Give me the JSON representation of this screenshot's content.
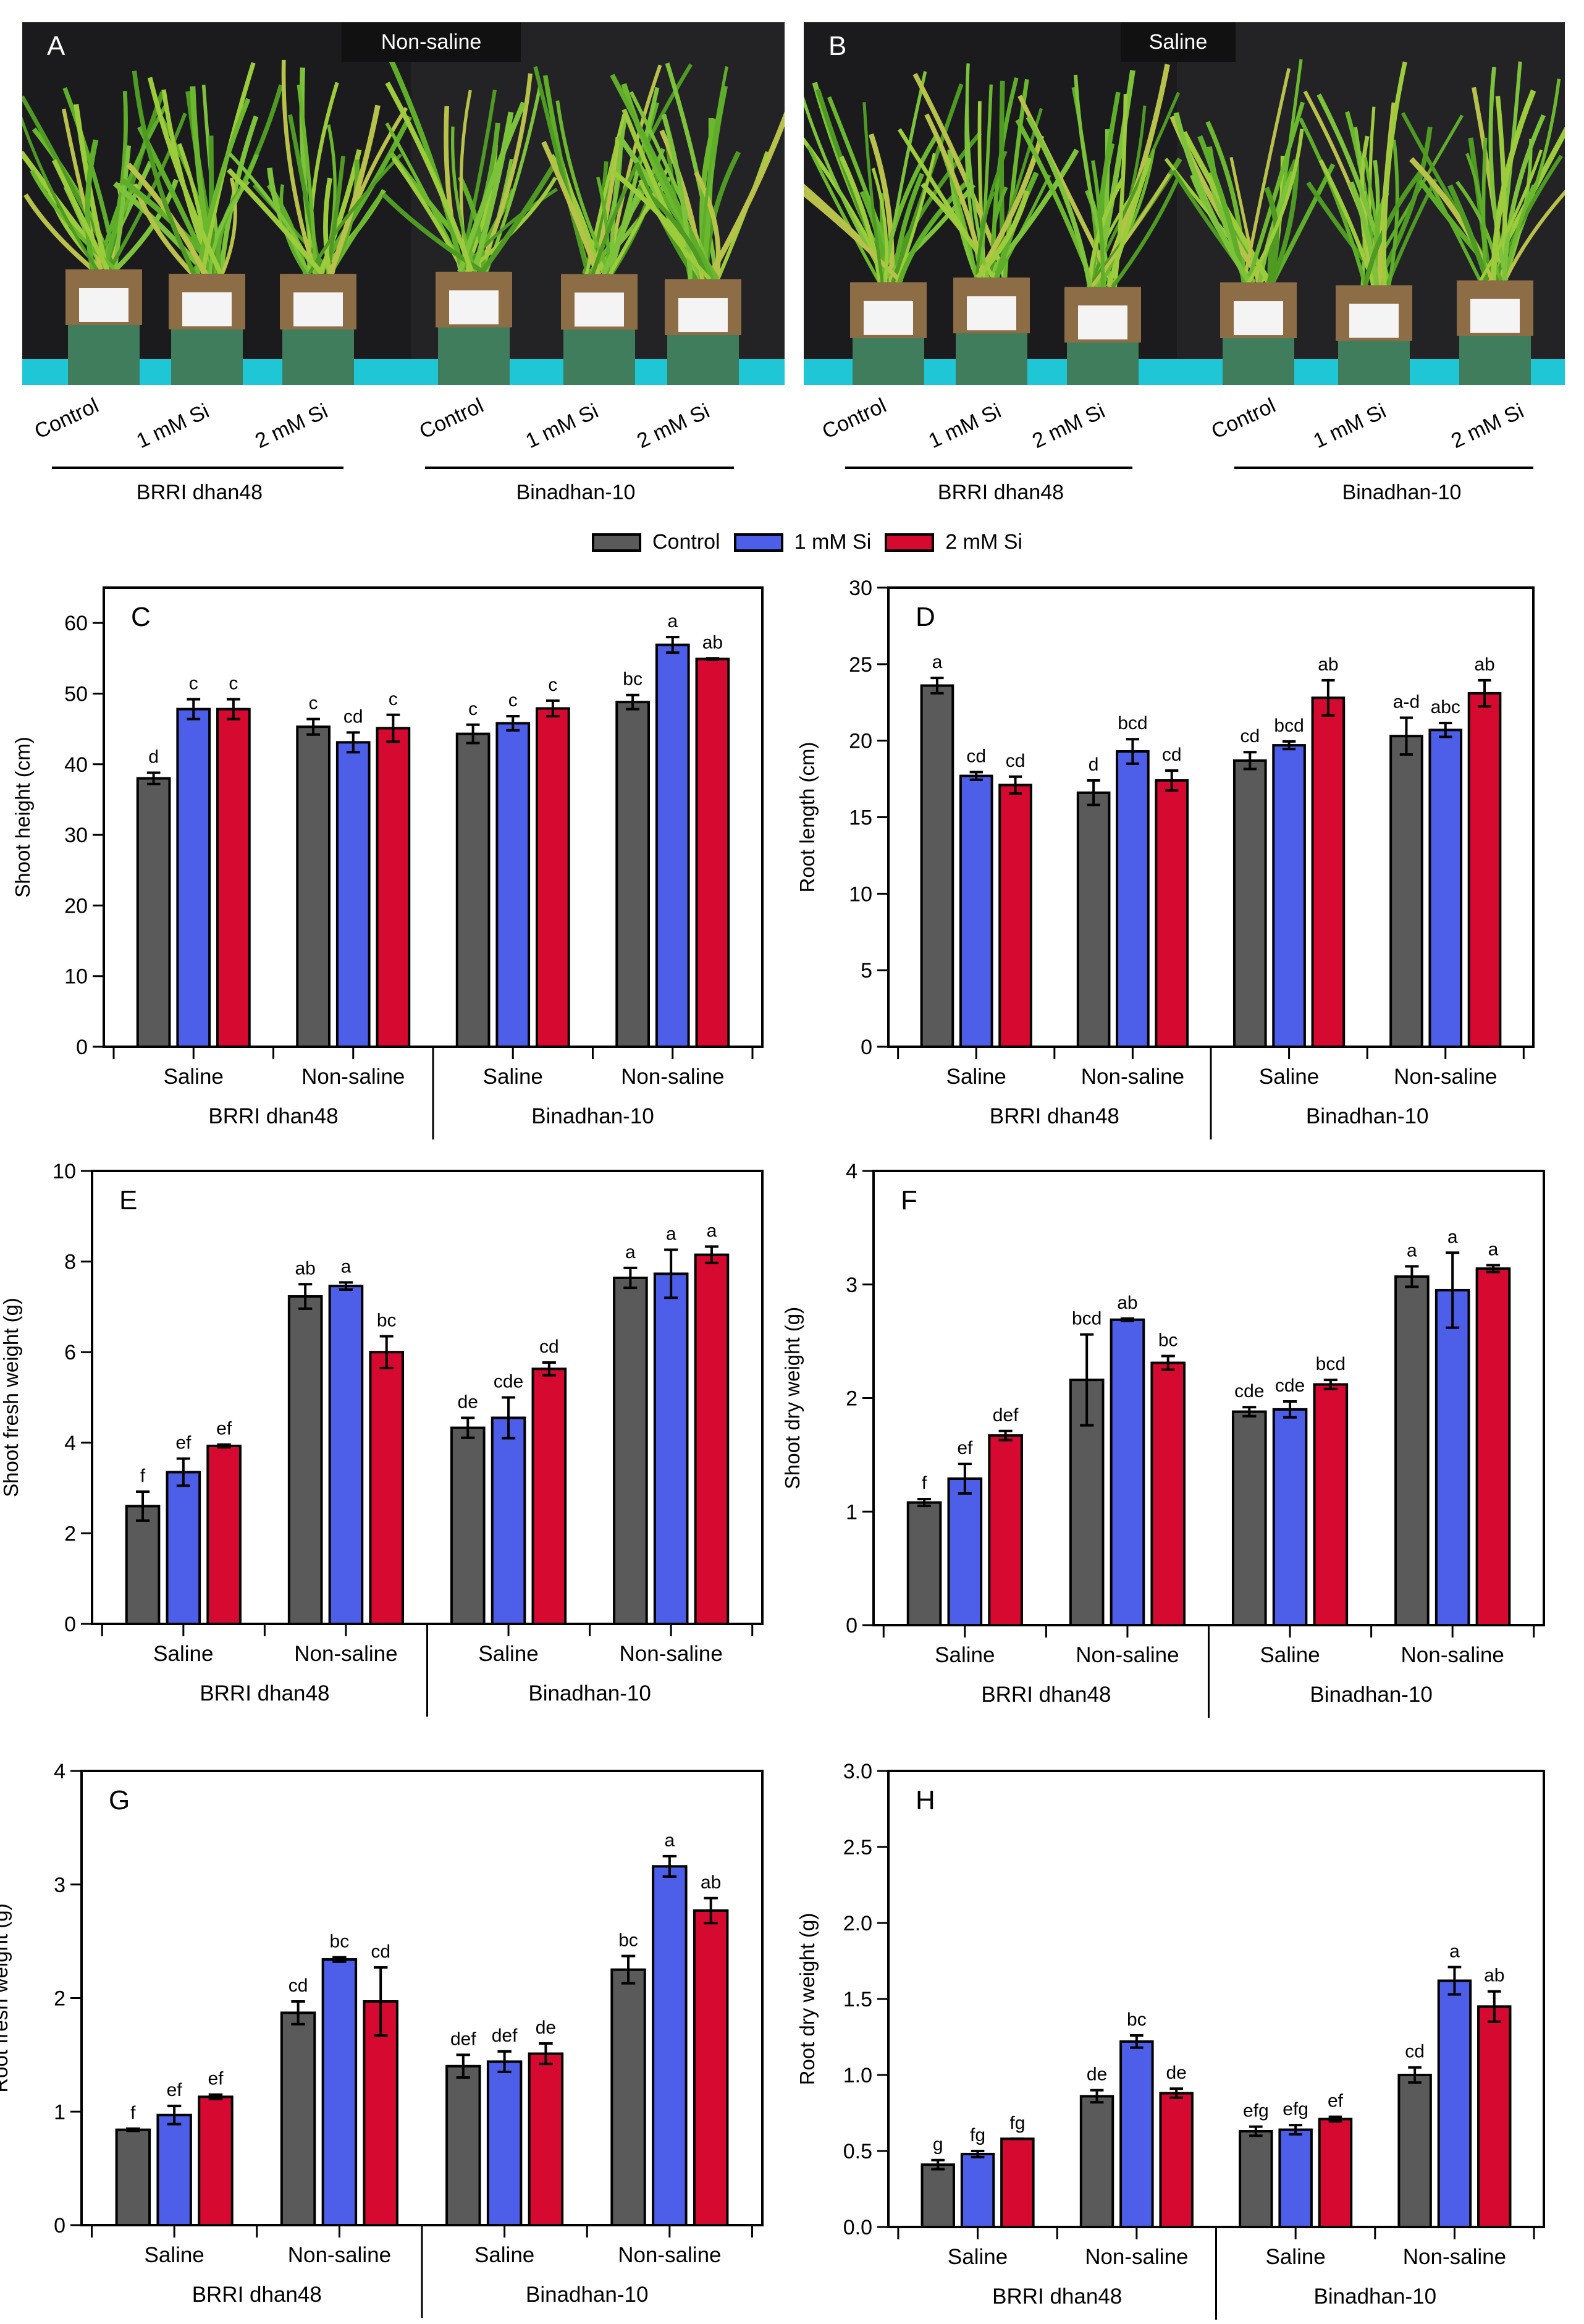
{
  "photos": [
    {
      "panel": "A",
      "condition": "Non-saline",
      "cultivars": [
        {
          "name": "BRRI dhan48",
          "treatments": [
            "Control",
            "1 mM Si",
            "2 mM Si"
          ]
        },
        {
          "name": "Binadhan-10",
          "treatments": [
            "Control",
            "1 mM Si",
            "2 mM Si"
          ]
        }
      ]
    },
    {
      "panel": "B",
      "condition": "Saline",
      "cultivars": [
        {
          "name": "BRRI dhan48",
          "treatments": [
            "Control",
            "1 mM Si",
            "2 mM Si"
          ]
        },
        {
          "name": "Binadhan-10",
          "treatments": [
            "Control",
            "1 mM Si",
            "2 mM Si"
          ]
        }
      ]
    }
  ],
  "legend": [
    {
      "label": "Control",
      "color": "#5a5a5a"
    },
    {
      "label": "1 mM Si",
      "color": "#4d5fe8"
    },
    {
      "label": "2 mM Si",
      "color": "#d60a30"
    }
  ],
  "chart_data": [
    {
      "panel": "C",
      "type": "bar",
      "ylabel": "Shoot height (cm)",
      "ylim": [
        0,
        65
      ],
      "yticks": [
        0,
        10,
        20,
        30,
        40,
        50,
        60
      ],
      "ytick_labels": [
        "0",
        "10",
        "20",
        "30",
        "40",
        "50",
        "60"
      ],
      "categories": [
        "Saline",
        "Non-saline",
        "Saline",
        "Non-saline"
      ],
      "cultivars": [
        "BRRI dhan48",
        "Binadhan-10"
      ],
      "series": [
        {
          "name": "Control",
          "values": [
            38.0,
            45.3,
            44.3,
            48.8
          ],
          "errors": [
            0.8,
            1.1,
            1.3,
            1.0
          ],
          "letters": [
            "d",
            "c",
            "c",
            "bc"
          ]
        },
        {
          "name": "1 mM Si",
          "values": [
            47.8,
            43.1,
            45.8,
            56.9
          ],
          "errors": [
            1.4,
            1.4,
            1.0,
            1.1
          ],
          "letters": [
            "c",
            "cd",
            "c",
            "a"
          ]
        },
        {
          "name": "2 mM Si",
          "values": [
            47.8,
            45.1,
            47.9,
            54.9
          ],
          "errors": [
            1.4,
            1.9,
            1.1,
            0.1
          ],
          "letters": [
            "c",
            "c",
            "c",
            "ab"
          ]
        }
      ]
    },
    {
      "panel": "D",
      "type": "bar",
      "ylabel": "Root length (cm)",
      "ylim": [
        0,
        30
      ],
      "yticks": [
        0,
        5,
        10,
        15,
        20,
        25,
        30
      ],
      "ytick_labels": [
        "0",
        "5",
        "10",
        "15",
        "20",
        "25",
        "30"
      ],
      "categories": [
        "Saline",
        "Non-saline",
        "Saline",
        "Non-saline"
      ],
      "cultivars": [
        "BRRI dhan48",
        "Binadhan-10"
      ],
      "series": [
        {
          "name": "Control",
          "values": [
            23.6,
            16.6,
            18.7,
            20.3
          ],
          "errors": [
            0.5,
            0.8,
            0.55,
            1.2
          ],
          "letters": [
            "a",
            "d",
            "cd",
            "a-d"
          ]
        },
        {
          "name": "1 mM Si",
          "values": [
            17.7,
            19.3,
            19.7,
            20.7
          ],
          "errors": [
            0.25,
            0.8,
            0.25,
            0.45
          ],
          "letters": [
            "cd",
            "bcd",
            "bcd",
            "abc"
          ]
        },
        {
          "name": "2 mM Si",
          "values": [
            17.1,
            17.4,
            22.8,
            23.1
          ],
          "errors": [
            0.55,
            0.65,
            1.15,
            0.85
          ],
          "letters": [
            "cd",
            "cd",
            "ab",
            "ab"
          ]
        }
      ]
    },
    {
      "panel": "E",
      "type": "bar",
      "ylabel": "Shoot fresh weight (g)",
      "ylim": [
        0,
        10
      ],
      "yticks": [
        0,
        2,
        4,
        6,
        8,
        10
      ],
      "ytick_labels": [
        "0",
        "2",
        "4",
        "6",
        "8",
        "10"
      ],
      "categories": [
        "Saline",
        "Non-saline",
        "Saline",
        "Non-saline"
      ],
      "cultivars": [
        "BRRI dhan48",
        "Binadhan-10"
      ],
      "series": [
        {
          "name": "Control",
          "values": [
            2.6,
            7.23,
            4.33,
            7.64
          ],
          "errors": [
            0.32,
            0.27,
            0.22,
            0.22
          ],
          "letters": [
            "f",
            "ab",
            "de",
            "a"
          ]
        },
        {
          "name": "1 mM Si",
          "values": [
            3.35,
            7.46,
            4.55,
            7.73
          ],
          "errors": [
            0.3,
            0.08,
            0.45,
            0.53
          ],
          "letters": [
            "ef",
            "a",
            "cde",
            "a"
          ]
        },
        {
          "name": "2 mM Si",
          "values": [
            3.93,
            6.0,
            5.63,
            8.15
          ],
          "errors": [
            0.03,
            0.35,
            0.14,
            0.18
          ],
          "letters": [
            "ef",
            "bc",
            "cd",
            "a"
          ]
        }
      ]
    },
    {
      "panel": "F",
      "type": "bar",
      "ylabel": "Shoot dry weight (g)",
      "ylim": [
        0,
        4
      ],
      "yticks": [
        0,
        1,
        2,
        3,
        4
      ],
      "ytick_labels": [
        "0",
        "1",
        "2",
        "3",
        "4"
      ],
      "categories": [
        "Saline",
        "Non-saline",
        "Saline",
        "Non-saline"
      ],
      "cultivars": [
        "BRRI dhan48",
        "Binadhan-10"
      ],
      "series": [
        {
          "name": "Control",
          "values": [
            1.08,
            2.16,
            1.88,
            3.07
          ],
          "errors": [
            0.03,
            0.4,
            0.04,
            0.09
          ],
          "letters": [
            "f",
            "bcd",
            "cde",
            "a"
          ]
        },
        {
          "name": "1 mM Si",
          "values": [
            1.29,
            2.69,
            1.9,
            2.95
          ],
          "errors": [
            0.13,
            0.01,
            0.07,
            0.33
          ],
          "letters": [
            "ef",
            "ab",
            "cde",
            "a"
          ]
        },
        {
          "name": "2 mM Si",
          "values": [
            1.67,
            2.31,
            2.12,
            3.14
          ],
          "errors": [
            0.04,
            0.06,
            0.04,
            0.03
          ],
          "letters": [
            "def",
            "bc",
            "bcd",
            "a"
          ]
        }
      ]
    },
    {
      "panel": "G",
      "type": "bar",
      "ylabel": "Root fresh weight (g)",
      "ylim": [
        0,
        4
      ],
      "yticks": [
        0,
        1,
        2,
        3,
        4
      ],
      "ytick_labels": [
        "0",
        "1",
        "2",
        "3",
        "4"
      ],
      "categories": [
        "Saline",
        "Non-saline",
        "Saline",
        "Non-saline"
      ],
      "cultivars": [
        "BRRI dhan48",
        "Binadhan-10"
      ],
      "series": [
        {
          "name": "Control",
          "values": [
            0.84,
            1.87,
            1.4,
            2.25
          ],
          "errors": [
            0.01,
            0.1,
            0.1,
            0.12
          ],
          "letters": [
            "f",
            "cd",
            "def",
            "bc"
          ]
        },
        {
          "name": "1 mM Si",
          "values": [
            0.97,
            2.34,
            1.44,
            3.16
          ],
          "errors": [
            0.08,
            0.02,
            0.09,
            0.09
          ],
          "letters": [
            "ef",
            "bc",
            "def",
            "a"
          ]
        },
        {
          "name": "2 mM Si",
          "values": [
            1.13,
            1.97,
            1.51,
            2.77
          ],
          "errors": [
            0.02,
            0.3,
            0.09,
            0.11
          ],
          "letters": [
            "ef",
            "cd",
            "de",
            "ab"
          ]
        }
      ]
    },
    {
      "panel": "H",
      "type": "bar",
      "ylabel": "Root dry weight (g)",
      "ylim": [
        0,
        3
      ],
      "yticks": [
        0,
        0.5,
        1,
        1.5,
        2,
        2.5,
        3
      ],
      "ytick_labels": [
        "0.0",
        "0.5",
        "1.0",
        "1.5",
        "2.0",
        "2.5",
        "3.0"
      ],
      "categories": [
        "Saline",
        "Non-saline",
        "Saline",
        "Non-saline"
      ],
      "cultivars": [
        "BRRI dhan48",
        "Binadhan-10"
      ],
      "series": [
        {
          "name": "Control",
          "values": [
            0.41,
            0.86,
            0.63,
            1.0
          ],
          "errors": [
            0.03,
            0.04,
            0.03,
            0.05
          ],
          "letters": [
            "g",
            "de",
            "efg",
            "cd"
          ]
        },
        {
          "name": "1 mM Si",
          "values": [
            0.48,
            1.22,
            0.64,
            1.62
          ],
          "errors": [
            0.02,
            0.04,
            0.03,
            0.09
          ],
          "letters": [
            "fg",
            "bc",
            "efg",
            "a"
          ]
        },
        {
          "name": "2 mM Si",
          "values": [
            0.58,
            0.88,
            0.71,
            1.45
          ],
          "errors": [
            0,
            0.03,
            0.015,
            0.1
          ],
          "letters": [
            "fg",
            "de",
            "ef",
            "ab"
          ]
        }
      ]
    }
  ]
}
